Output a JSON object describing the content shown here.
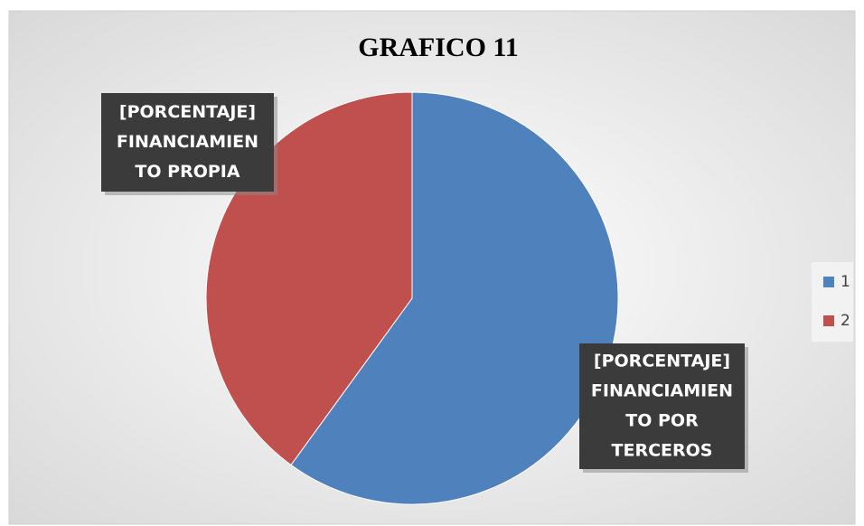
{
  "chart_data": {
    "type": "pie",
    "title": "GRAFICO 11",
    "categories": [
      "1",
      "2"
    ],
    "values": [
      60,
      40
    ],
    "colors": [
      "#4f81bd",
      "#c0504d"
    ],
    "data_labels": [
      [
        "[PORCENTAJE]",
        "FINANCIAMIEN",
        "TO POR",
        "TERCEROS"
      ],
      [
        "[PORCENTAJE]",
        "FINANCIAMIEN",
        "TO PROPIA"
      ]
    ],
    "legend": "right"
  }
}
